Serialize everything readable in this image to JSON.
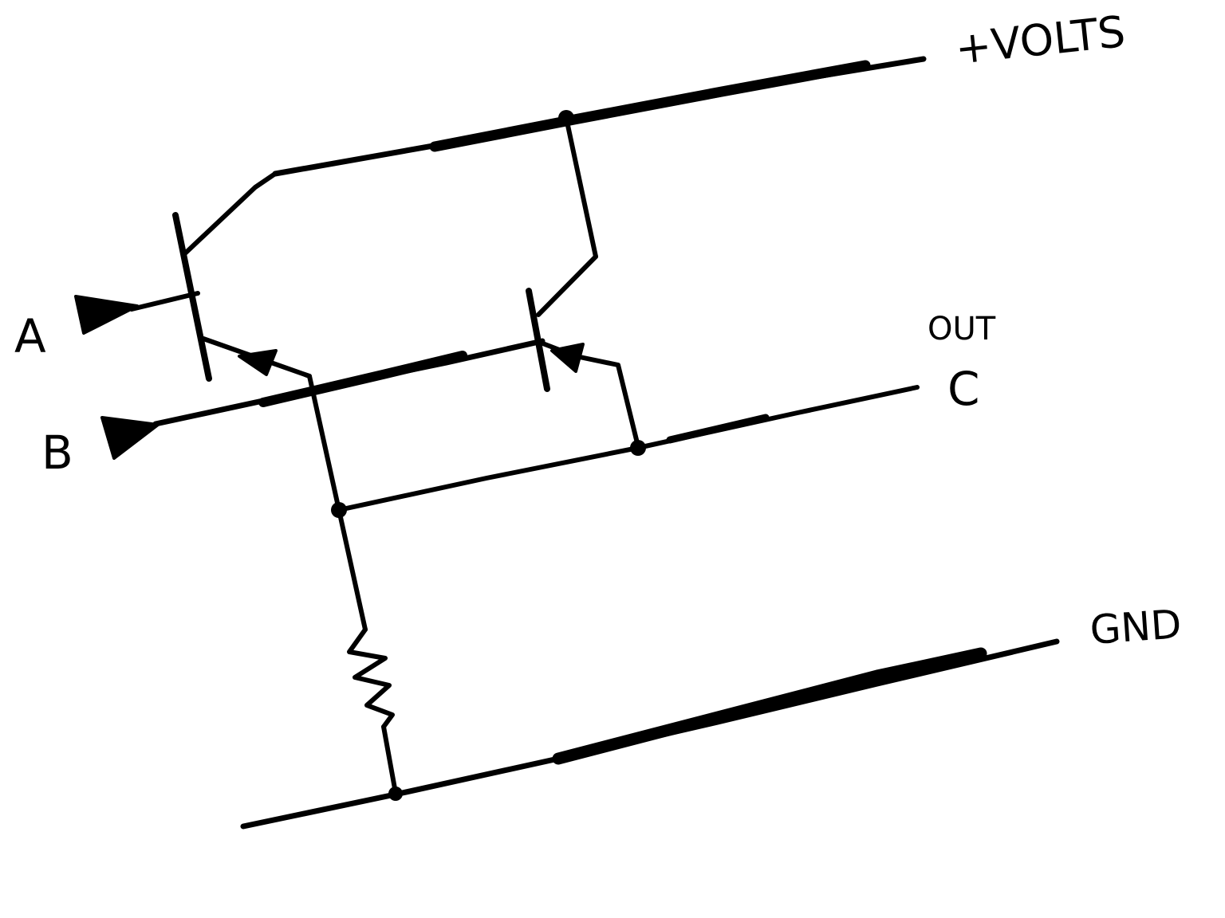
{
  "labels": {
    "supply": "+VOLTS",
    "input_a": "A",
    "input_b": "B",
    "out_caption": "OUT",
    "output_c": "C",
    "ground": "GND"
  },
  "colors": {
    "ink": "#000000",
    "paper": "#ffffff"
  }
}
